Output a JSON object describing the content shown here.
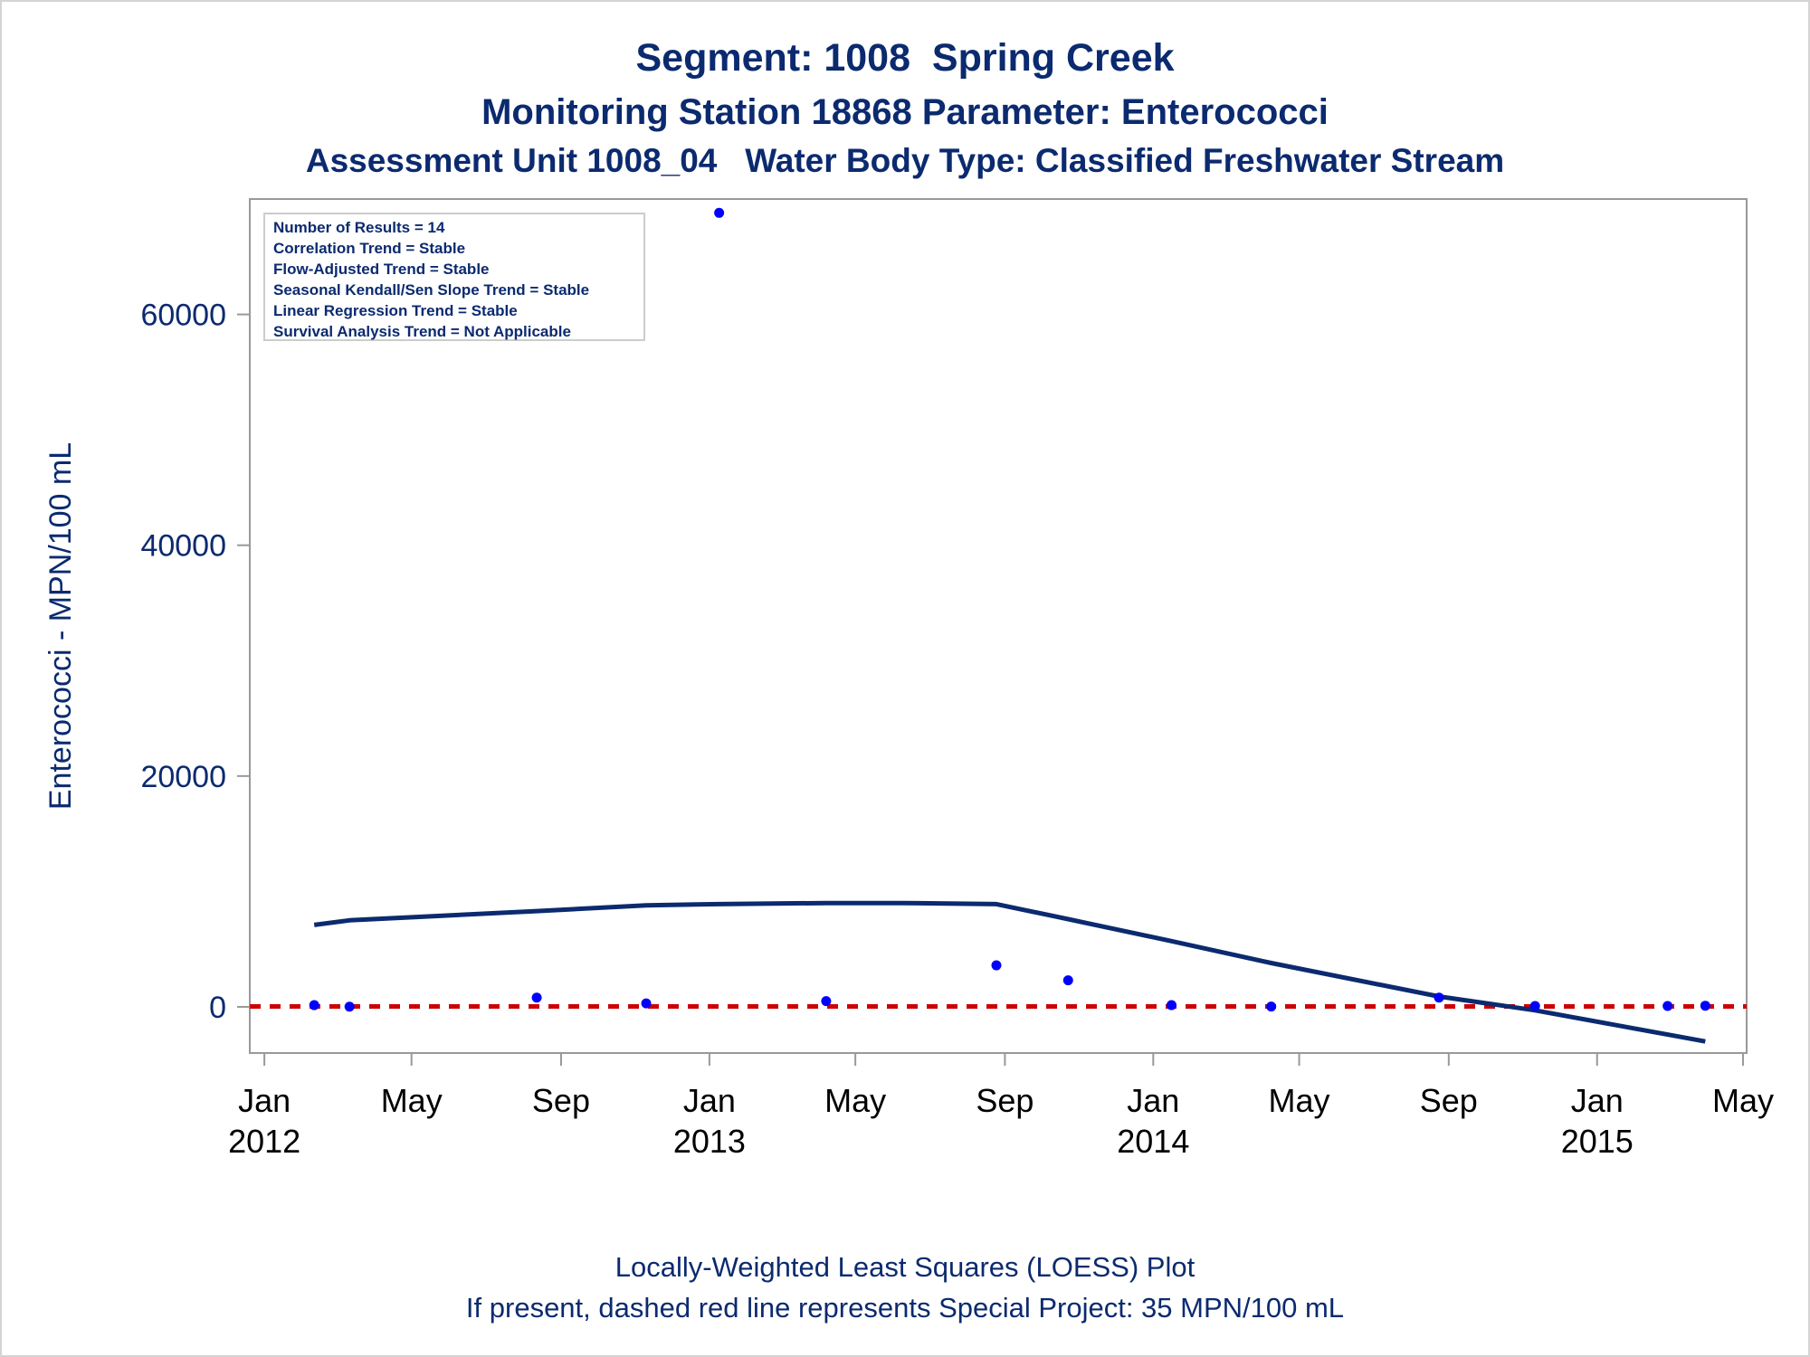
{
  "titles": {
    "line1": "Segment: 1008  Spring Creek",
    "line2": "Monitoring Station 18868 Parameter: Enterococci",
    "line3": "Assessment Unit 1008_04   Water Body Type: Classified Freshwater Stream"
  },
  "footnotes": {
    "line1": "Locally-Weighted Least Squares (LOESS) Plot",
    "line2": "If present, dashed red line represents Special Project: 35 MPN/100 mL"
  },
  "info_box": [
    "Number of Results = 14",
    "Correlation Trend = Stable",
    "Flow-Adjusted Trend = Stable",
    "Seasonal Kendall/Sen Slope Trend = Stable",
    "Linear Regression Trend = Stable",
    "Survival Analysis Trend = Not Applicable"
  ],
  "colors": {
    "text": "#0b2a6f",
    "points": "#0000ff",
    "loess": "#0b2a6f",
    "reference": "#cc0000",
    "axis": "#999999"
  },
  "chart_data": {
    "type": "scatter",
    "ylabel": "Enterococci - MPN/100 mL",
    "xlim": [
      "2011-12-20",
      "2015-05-04"
    ],
    "ylim": [
      -4000,
      70000
    ],
    "y_ticks": [
      0,
      20000,
      40000,
      60000
    ],
    "x_ticks": [
      {
        "date": "2012-01-01",
        "month": "Jan",
        "year": "2012"
      },
      {
        "date": "2012-05-01",
        "month": "May",
        "year": ""
      },
      {
        "date": "2012-09-01",
        "month": "Sep",
        "year": ""
      },
      {
        "date": "2013-01-01",
        "month": "Jan",
        "year": "2013"
      },
      {
        "date": "2013-05-01",
        "month": "May",
        "year": ""
      },
      {
        "date": "2013-09-01",
        "month": "Sep",
        "year": ""
      },
      {
        "date": "2014-01-01",
        "month": "Jan",
        "year": "2014"
      },
      {
        "date": "2014-05-01",
        "month": "May",
        "year": ""
      },
      {
        "date": "2014-09-01",
        "month": "Sep",
        "year": ""
      },
      {
        "date": "2015-01-01",
        "month": "Jan",
        "year": "2015"
      },
      {
        "date": "2015-05-01",
        "month": "May",
        "year": ""
      }
    ],
    "grid": false,
    "series": [
      {
        "kind": "scatter",
        "points": [
          {
            "x": "2012-02-11",
            "y": 150
          },
          {
            "x": "2012-03-11",
            "y": 20
          },
          {
            "x": "2012-08-12",
            "y": 800
          },
          {
            "x": "2012-11-10",
            "y": 300
          },
          {
            "x": "2013-01-09",
            "y": 68800
          },
          {
            "x": "2013-04-07",
            "y": 500
          },
          {
            "x": "2013-08-25",
            "y": 3600
          },
          {
            "x": "2013-10-23",
            "y": 2300
          },
          {
            "x": "2014-01-16",
            "y": 150
          },
          {
            "x": "2014-04-08",
            "y": 30
          },
          {
            "x": "2014-08-24",
            "y": 800
          },
          {
            "x": "2014-11-11",
            "y": 80
          },
          {
            "x": "2015-02-28",
            "y": 80
          },
          {
            "x": "2015-03-31",
            "y": 100
          }
        ]
      },
      {
        "kind": "loess",
        "points": [
          {
            "x": "2012-02-11",
            "y": 7100
          },
          {
            "x": "2012-03-11",
            "y": 7500
          },
          {
            "x": "2012-08-12",
            "y": 8300
          },
          {
            "x": "2012-11-10",
            "y": 8800
          },
          {
            "x": "2013-01-09",
            "y": 8900
          },
          {
            "x": "2013-04-07",
            "y": 9000
          },
          {
            "x": "2013-06-10",
            "y": 9000
          },
          {
            "x": "2013-08-25",
            "y": 8900
          },
          {
            "x": "2013-10-23",
            "y": 7600
          },
          {
            "x": "2014-01-16",
            "y": 5700
          },
          {
            "x": "2014-04-08",
            "y": 3800
          },
          {
            "x": "2014-08-24",
            "y": 900
          },
          {
            "x": "2014-11-11",
            "y": -300
          },
          {
            "x": "2015-02-28",
            "y": -2400
          },
          {
            "x": "2015-03-31",
            "y": -3000
          }
        ]
      },
      {
        "kind": "reference",
        "y": 35
      }
    ]
  }
}
